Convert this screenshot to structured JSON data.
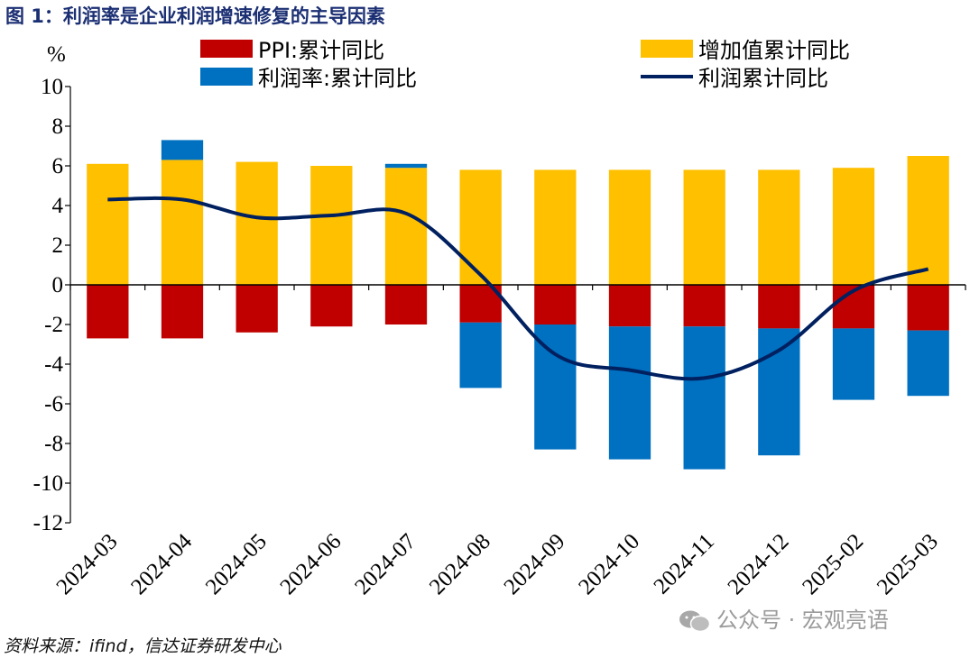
{
  "title": "图 1：利润率是企业利润增速修复的主导因素",
  "source": "资料来源：ifind，信达证券研发中心",
  "watermark": "公众号 · 宏观亮语",
  "chart_data": {
    "type": "bar",
    "stacked": true,
    "unit_label": "%",
    "categories": [
      "2024-03",
      "2024-04",
      "2024-05",
      "2024-06",
      "2024-07",
      "2024-08",
      "2024-09",
      "2024-10",
      "2024-11",
      "2024-12",
      "2025-02",
      "2025-03"
    ],
    "ylim": [
      -12,
      10
    ],
    "yticks": [
      10,
      8,
      6,
      4,
      2,
      0,
      -2,
      -4,
      -6,
      -8,
      -10,
      -12
    ],
    "legend_position": "top",
    "series": [
      {
        "name": "PPI:累计同比",
        "kind": "bar",
        "color": "#c00000",
        "values": [
          -2.7,
          -2.7,
          -2.4,
          -2.1,
          -2.0,
          -1.9,
          -2.0,
          -2.1,
          -2.1,
          -2.2,
          -2.2,
          -2.3
        ]
      },
      {
        "name": "增加值累计同比",
        "kind": "bar",
        "color": "#ffc000",
        "values": [
          6.1,
          6.3,
          6.2,
          6.0,
          5.9,
          5.8,
          5.8,
          5.8,
          5.8,
          5.8,
          5.9,
          6.5
        ]
      },
      {
        "name": "利润率:累计同比",
        "kind": "bar",
        "color": "#0070c0",
        "values": [
          0.0,
          1.0,
          0.0,
          0.0,
          0.2,
          -3.3,
          -6.3,
          -6.7,
          -7.2,
          -6.4,
          -3.6,
          -3.3
        ]
      },
      {
        "name": "利润累计同比",
        "kind": "line",
        "color": "#002060",
        "values": [
          4.3,
          4.3,
          3.4,
          3.5,
          3.6,
          0.5,
          -3.5,
          -4.3,
          -4.7,
          -3.3,
          -0.3,
          0.8
        ]
      }
    ]
  }
}
